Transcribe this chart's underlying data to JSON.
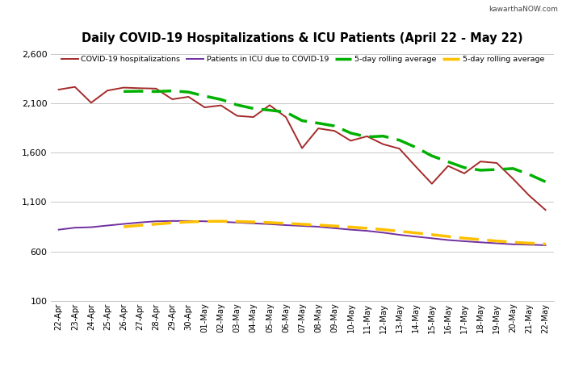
{
  "dates": [
    "22-Apr",
    "23-Apr",
    "24-Apr",
    "25-Apr",
    "26-Apr",
    "27-Apr",
    "28-Apr",
    "29-Apr",
    "30-Apr",
    "01-May",
    "02-May",
    "03-May",
    "04-May",
    "05-May",
    "06-May",
    "07-May",
    "08-May",
    "09-May",
    "10-May",
    "11-May",
    "12-May",
    "13-May",
    "14-May",
    "15-May",
    "16-May",
    "17-May",
    "18-May",
    "19-May",
    "20-May",
    "21-May",
    "22-May"
  ],
  "hosp": [
    2238,
    2265,
    2105,
    2228,
    2258,
    2252,
    2248,
    2140,
    2165,
    2058,
    2078,
    1972,
    1960,
    2080,
    1960,
    1645,
    1845,
    1820,
    1720,
    1765,
    1685,
    1640,
    1460,
    1285,
    1465,
    1390,
    1510,
    1495,
    1335,
    1165,
    1020
  ],
  "icu": [
    820,
    840,
    845,
    862,
    878,
    893,
    905,
    908,
    908,
    905,
    900,
    892,
    884,
    876,
    866,
    858,
    850,
    835,
    820,
    808,
    790,
    768,
    750,
    733,
    715,
    703,
    692,
    682,
    672,
    668,
    663
  ],
  "title": "Daily COVID-19 Hospitalizations & ICU Patients (April 22 - May 22)",
  "watermark": "kawarthaNOW.com",
  "hosp_color": "#a52a2a",
  "icu_color": "#7030a0",
  "hosp_avg_color": "#00b000",
  "icu_avg_color": "#ffc000",
  "ylim": [
    100,
    2650
  ],
  "yticks": [
    100,
    600,
    1100,
    1600,
    2100,
    2600
  ],
  "ytick_labels": [
    "100",
    "600",
    "1,100",
    "1,600",
    "2,100",
    "2,600"
  ],
  "legend_labels": [
    "COVID-19 hospitalizations",
    "Patients in ICU due to COVID-19",
    "5-day rolling average",
    "5-day rolling average"
  ],
  "background_color": "#ffffff",
  "grid_color": "#c8c8c8"
}
